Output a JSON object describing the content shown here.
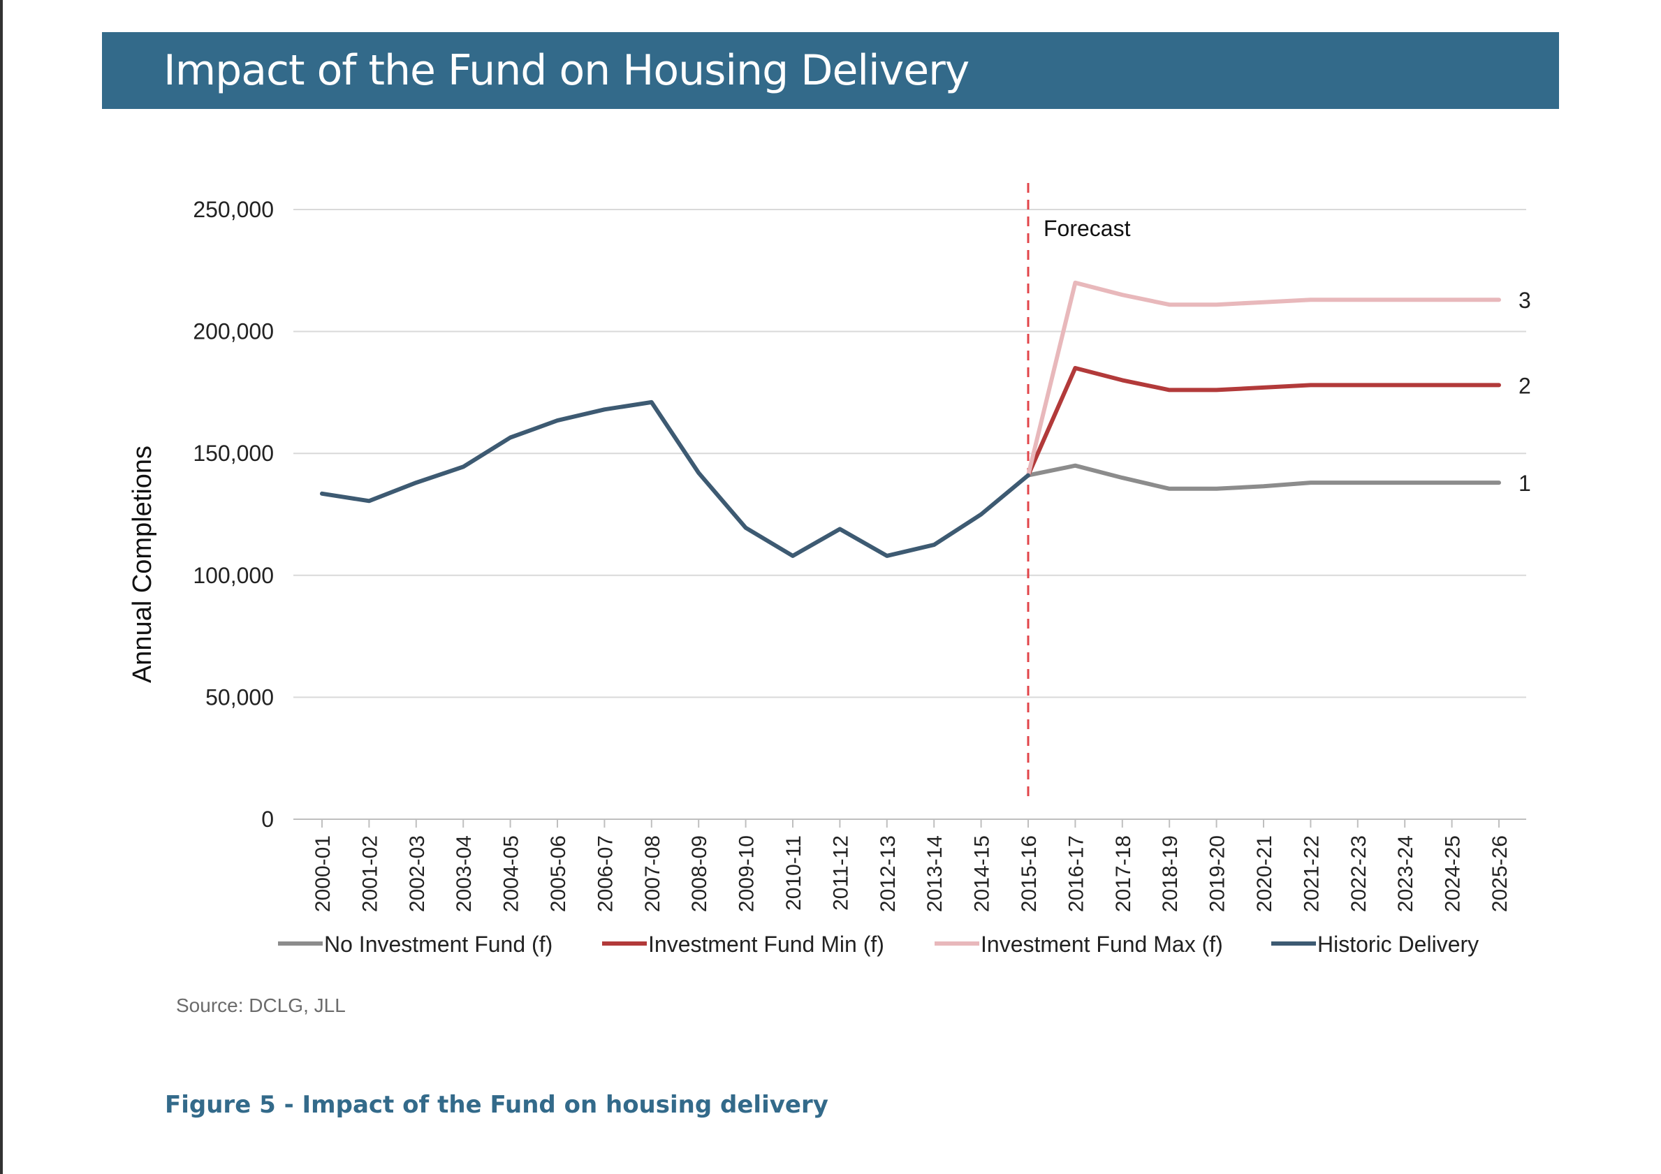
{
  "banner": {
    "title": "Impact of the Fund on Housing Delivery"
  },
  "source": "Source: DCLG, JLL",
  "caption": "Figure 5 - Impact of the Fund on housing delivery",
  "chart_data": {
    "type": "line",
    "title": "",
    "ylabel": "Annual Completions",
    "xlabel": "",
    "ylim": [
      0,
      250000
    ],
    "yticks": [
      0,
      50000,
      100000,
      150000,
      200000,
      250000
    ],
    "ytick_labels": [
      "0",
      "50,000",
      "100,000",
      "150,000",
      "200,000",
      "250,000"
    ],
    "grid": true,
    "legend_position": "bottom",
    "categories": [
      "2000-01",
      "2001-02",
      "2002-03",
      "2003-04",
      "2004-05",
      "2005-06",
      "2006-07",
      "2007-08",
      "2008-09",
      "2009-10",
      "2010-11",
      "2011-12",
      "2012-13",
      "2013-14",
      "2014-15",
      "2015-16",
      "2016-17",
      "2017-18",
      "2018-19",
      "2019-20",
      "2020-21",
      "2021-22",
      "2022-23",
      "2023-24",
      "2024-25",
      "2025-26"
    ],
    "forecast_marker": {
      "category": "2015-16",
      "label": "Forecast",
      "color": "#e2454a"
    },
    "series": [
      {
        "name": "No Investment Fund (f)",
        "color": "#8c8c8c",
        "end_label": "1",
        "values": [
          null,
          null,
          null,
          null,
          null,
          null,
          null,
          null,
          null,
          null,
          null,
          null,
          null,
          null,
          null,
          141000,
          145000,
          140000,
          135500,
          135500,
          136500,
          138000,
          138000,
          138000,
          138000,
          138000
        ]
      },
      {
        "name": "Investment Fund Min (f)",
        "color": "#b23a3a",
        "end_label": "2",
        "values": [
          null,
          null,
          null,
          null,
          null,
          null,
          null,
          null,
          null,
          null,
          null,
          null,
          null,
          null,
          null,
          141000,
          185000,
          180000,
          176000,
          176000,
          177000,
          178000,
          178000,
          178000,
          178000,
          178000
        ]
      },
      {
        "name": "Investment Fund Max (f)",
        "color": "#e8b8bb",
        "end_label": "3",
        "values": [
          null,
          null,
          null,
          null,
          null,
          null,
          null,
          null,
          null,
          null,
          null,
          null,
          null,
          null,
          null,
          141000,
          220000,
          215000,
          211000,
          211000,
          212000,
          213000,
          213000,
          213000,
          213000,
          213000
        ]
      },
      {
        "name": "Historic Delivery",
        "color": "#3d5a72",
        "end_label": "",
        "values": [
          133500,
          130500,
          138000,
          144500,
          156500,
          163500,
          168000,
          171000,
          142000,
          119500,
          108000,
          119000,
          108000,
          112500,
          125000,
          141000,
          null,
          null,
          null,
          null,
          null,
          null,
          null,
          null,
          null,
          null
        ]
      }
    ]
  }
}
